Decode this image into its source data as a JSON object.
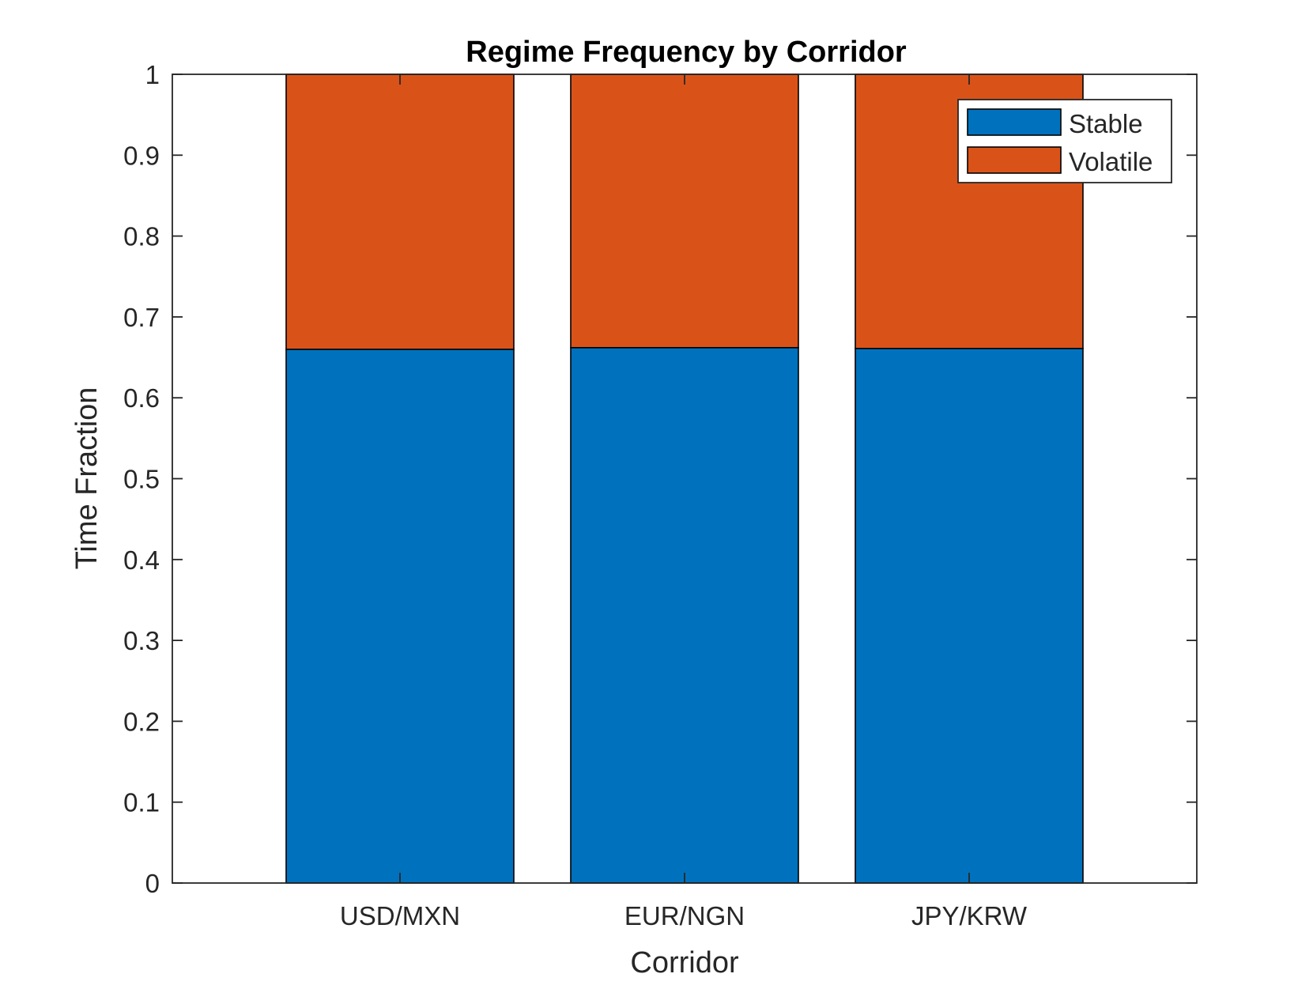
{
  "chart_data": {
    "type": "bar",
    "stacked": true,
    "title": "Regime Frequency by Corridor",
    "xlabel": "Corridor",
    "ylabel": "Time Fraction",
    "categories": [
      "USD/MXN",
      "EUR/NGN",
      "JPY/KRW"
    ],
    "series": [
      {
        "name": "Stable",
        "color": "#0072BD",
        "values": [
          0.66,
          0.662,
          0.661
        ]
      },
      {
        "name": "Volatile",
        "color": "#D95319",
        "values": [
          0.34,
          0.338,
          0.339
        ]
      }
    ],
    "ylim": [
      0,
      1
    ],
    "xlim": [
      0.2,
      3.8
    ],
    "yticks": [
      "0",
      "0.1",
      "0.2",
      "0.3",
      "0.4",
      "0.5",
      "0.6",
      "0.7",
      "0.8",
      "0.9",
      "1"
    ],
    "grid": false,
    "legend_position": "top-right"
  }
}
